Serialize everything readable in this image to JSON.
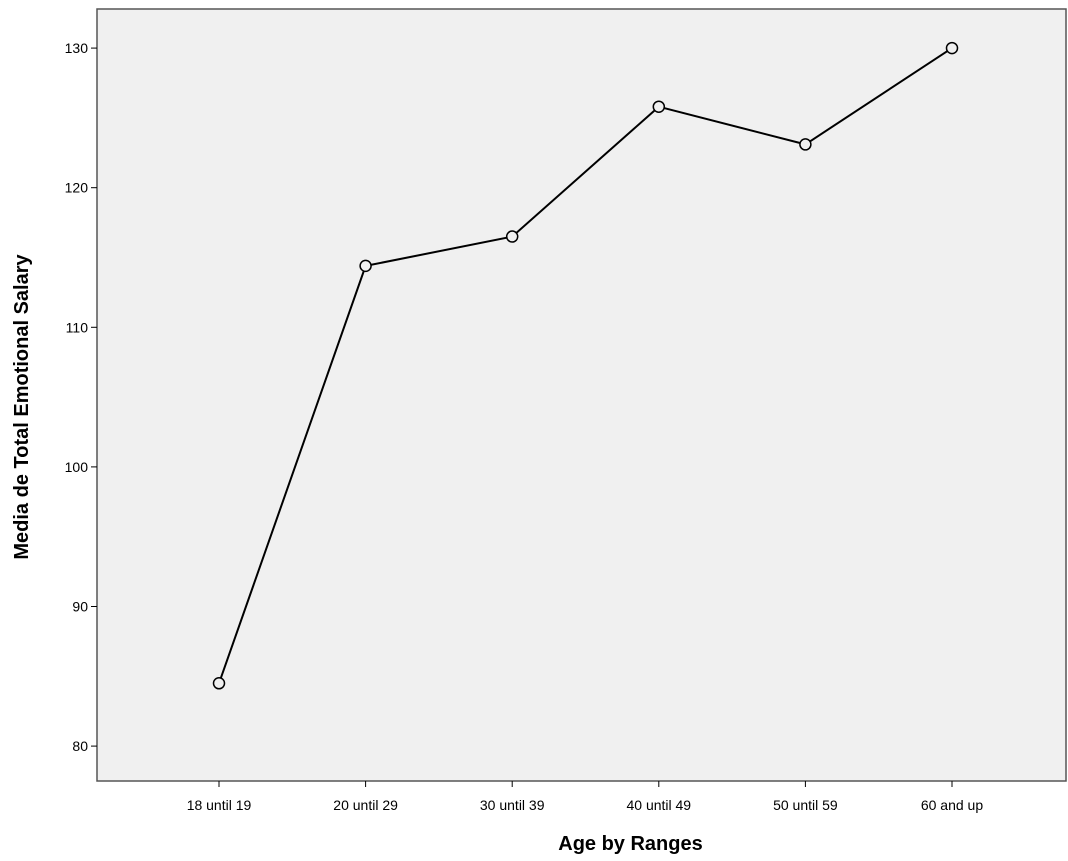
{
  "chart_data": {
    "type": "line",
    "categories": [
      "18 until 19",
      "20 until 29",
      "30 until 39",
      "40 until 49",
      "50 until 59",
      "60 and up"
    ],
    "values": [
      84.5,
      114.4,
      116.5,
      125.8,
      123.1,
      130.0
    ],
    "xlabel": "Age by Ranges",
    "ylabel": "Media de Total Emotional Salary",
    "ylim": [
      77.5,
      132.8
    ],
    "yticks": [
      80,
      90,
      100,
      110,
      120,
      130
    ],
    "grid": false,
    "legend": "none",
    "colors": {
      "plot_background": "#f0f0f0",
      "line": "#000000",
      "marker_fill": "#f0f0f0"
    }
  }
}
